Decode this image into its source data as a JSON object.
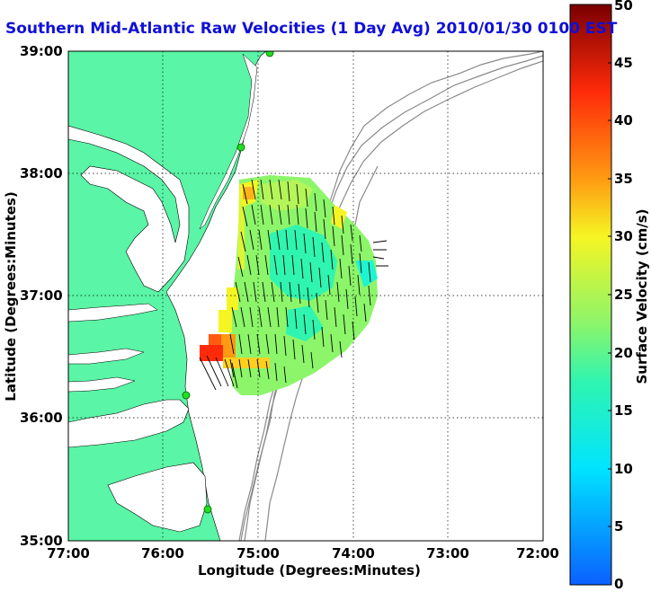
{
  "title": "Southern Mid-Atlantic Raw Velocities (1 Day Avg) 2010/01/30 0100 EST",
  "axes": {
    "xlabel": "Longitude (Degrees:Minutes)",
    "ylabel": "Latitude (Degrees:Minutes)",
    "x_ticks": [
      "77:00",
      "76:00",
      "75:00",
      "74:00",
      "73:00",
      "72:00"
    ],
    "y_ticks": [
      "39:00",
      "38:00",
      "37:00",
      "36:00",
      "35:00"
    ],
    "grid": "dotted"
  },
  "colorbar": {
    "label": "Surface Velocity (cm/s)",
    "ticks": [
      "50",
      "45",
      "40",
      "35",
      "30",
      "25",
      "20",
      "15",
      "10",
      "5",
      "0"
    ],
    "min": 0,
    "max": 50,
    "colormap": "jet"
  },
  "colors": {
    "land": "#5af5a6",
    "title": "#1010d8",
    "bathymetry": "#8a8a8a",
    "station": "#22dd22"
  }
}
